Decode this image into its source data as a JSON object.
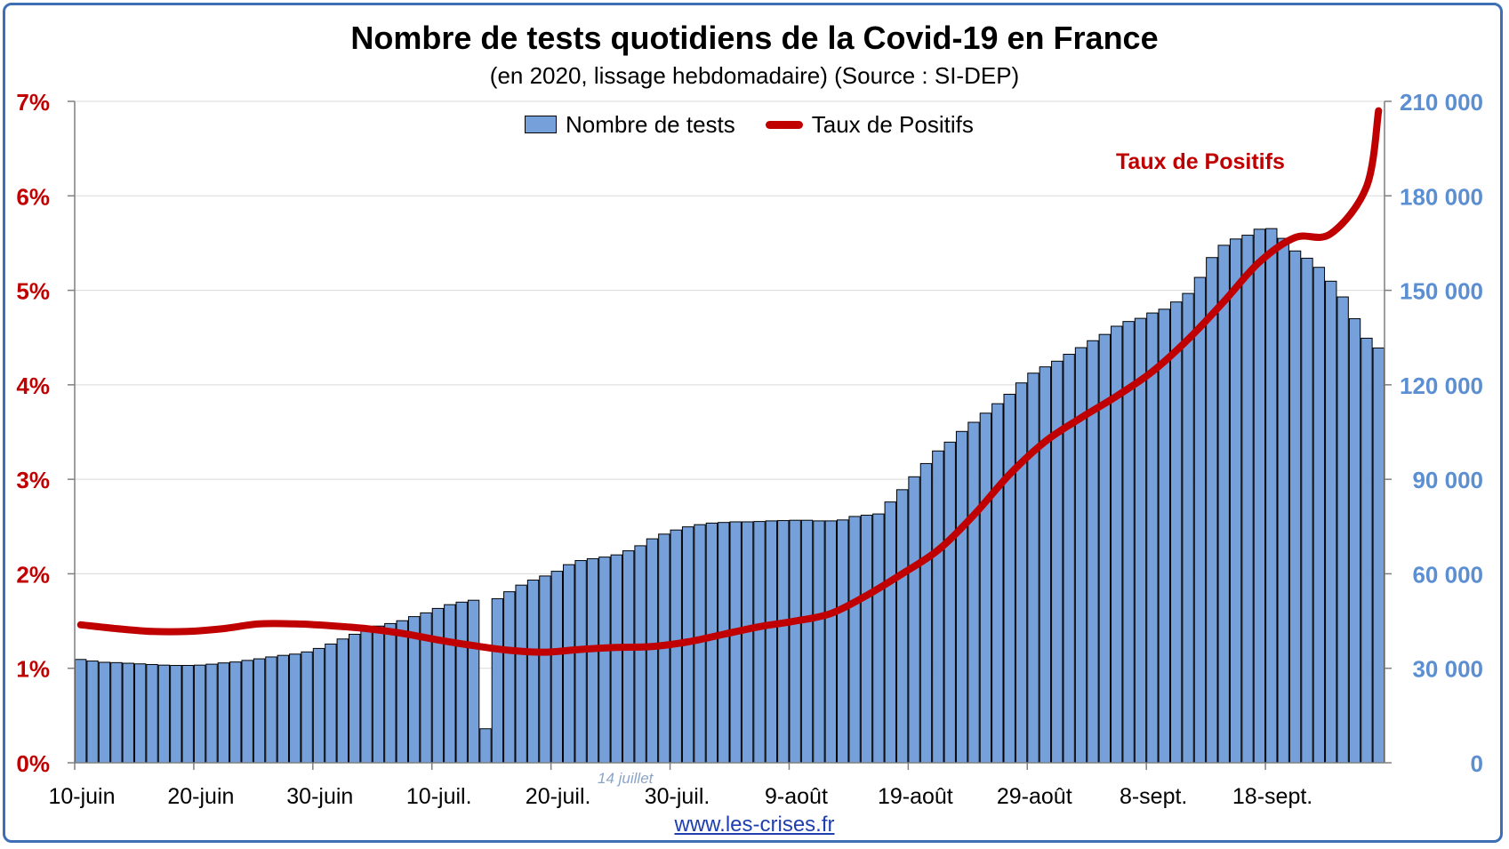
{
  "chart_data": {
    "type": "bar",
    "title": "Nombre de tests quotidiens de la Covid-19 en France",
    "subtitle": "(en 2020, lissage hebdomadaire) (Source : SI-DEP)",
    "x_tick_labels": [
      "10-juin",
      "20-juin",
      "30-juin",
      "10-juil.",
      "20-juil.",
      "30-juil.",
      "9-août",
      "19-août",
      "29-août",
      "8-sept.",
      "18-sept."
    ],
    "y_left": {
      "ticks": [
        "0%",
        "1%",
        "2%",
        "3%",
        "4%",
        "5%",
        "6%",
        "7%"
      ],
      "ylim": [
        0,
        7
      ]
    },
    "y_right": {
      "ticks": [
        "0",
        "30 000",
        "60 000",
        "90 000",
        "120 000",
        "150 000",
        "180 000",
        "210 000"
      ],
      "ylim": [
        0,
        210000
      ]
    },
    "grid": "horizontal",
    "legend_position": "top-center",
    "series": [
      {
        "name": "Nombre de tests",
        "type": "bar",
        "axis": "right",
        "color": "#76a0da",
        "values": [
          32800,
          32300,
          31900,
          31800,
          31600,
          31400,
          31200,
          31000,
          30900,
          30900,
          31000,
          31300,
          31700,
          32000,
          32500,
          33000,
          33600,
          34100,
          34500,
          35200,
          36300,
          37700,
          39300,
          40800,
          42400,
          43400,
          44200,
          45100,
          46400,
          47600,
          49000,
          50200,
          51000,
          51600,
          10800,
          52100,
          54300,
          56400,
          58000,
          59300,
          60800,
          62900,
          64200,
          64800,
          65300,
          66000,
          67300,
          68900,
          71100,
          72600,
          73900,
          74900,
          75600,
          76100,
          76300,
          76500,
          76500,
          76600,
          76800,
          76900,
          77000,
          77000,
          76800,
          76800,
          77100,
          78200,
          78600,
          79000,
          82800,
          86700,
          90800,
          95000,
          99000,
          101800,
          105200,
          108100,
          111000,
          114000,
          117000,
          120600,
          123700,
          125700,
          127500,
          129700,
          131800,
          134000,
          136000,
          138600,
          140100,
          141100,
          142800,
          144000,
          146300,
          149000,
          154100,
          160400,
          164300,
          166300,
          167500,
          169400,
          169600,
          166500,
          162500,
          160200,
          157300,
          152900,
          147900,
          141000,
          134800,
          131700
        ]
      },
      {
        "name": "Taux de Positifs",
        "type": "line",
        "axis": "left",
        "color": "#c00000",
        "x": [
          0,
          3,
          6,
          9,
          12,
          15,
          18,
          21,
          24,
          27,
          30,
          33,
          36,
          39,
          42,
          45,
          48,
          51,
          54,
          57,
          60,
          63,
          66,
          69,
          72,
          75,
          78,
          81,
          84,
          87,
          90,
          93,
          96,
          99,
          102,
          105,
          108,
          109
        ],
        "values": [
          1.46,
          1.42,
          1.39,
          1.39,
          1.42,
          1.47,
          1.47,
          1.45,
          1.42,
          1.37,
          1.3,
          1.24,
          1.19,
          1.17,
          1.2,
          1.22,
          1.23,
          1.28,
          1.36,
          1.44,
          1.5,
          1.58,
          1.77,
          2.0,
          2.25,
          2.62,
          3.05,
          3.4,
          3.65,
          3.88,
          4.14,
          4.48,
          4.88,
          5.3,
          5.56,
          5.6,
          6.1,
          6.9
        ]
      }
    ],
    "annotations": [
      "Taux de Positifs",
      "14 juillet"
    ],
    "source_link": "www.les-crises.fr"
  }
}
